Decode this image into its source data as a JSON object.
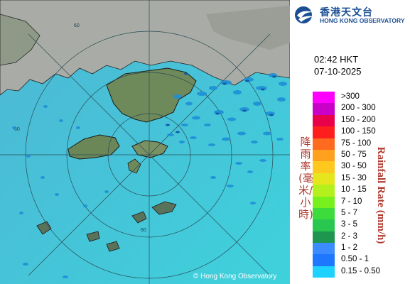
{
  "map": {
    "copyright": "© Hong Kong Observatory",
    "range_ring_labels": [
      "60",
      "60",
      "60"
    ]
  },
  "header": {
    "logo_cn": "香港天文台",
    "logo_en": "HONG KONG OBSERVATORY",
    "time": "02:42 HKT",
    "date": "07-10-2025"
  },
  "legend": {
    "title_cn": "降雨率(毫米/小時)",
    "title_en": "Rainfall Rate (mm/h)",
    "items": [
      {
        "label": ">300",
        "color": "#ff00ff"
      },
      {
        "label": "200 - 300",
        "color": "#c800c8"
      },
      {
        "label": "150 - 200",
        "color": "#e8004a"
      },
      {
        "label": "100 - 150",
        "color": "#ff1e1e"
      },
      {
        "label": "75 - 100",
        "color": "#ff6a1e"
      },
      {
        "label": "50 - 75",
        "color": "#ffa01e"
      },
      {
        "label": "30 - 50",
        "color": "#ffc81e"
      },
      {
        "label": "15 - 30",
        "color": "#e6e61e"
      },
      {
        "label": "10 - 15",
        "color": "#b4f01e"
      },
      {
        "label": "7 - 10",
        "color": "#78f01e"
      },
      {
        "label": "5 - 7",
        "color": "#3cdc3c"
      },
      {
        "label": "3 - 5",
        "color": "#28c850"
      },
      {
        "label": "2 - 3",
        "color": "#1e9650"
      },
      {
        "label": "1 - 2",
        "color": "#3c8cff"
      },
      {
        "label": "0.50 - 1",
        "color": "#1e78ff"
      },
      {
        "label": "0.15 - 0.50",
        "color": "#1ed2ff"
      }
    ]
  }
}
